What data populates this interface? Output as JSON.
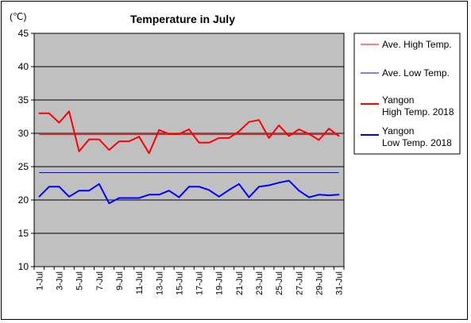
{
  "chart_data": {
    "type": "line",
    "title": "Temperature in July",
    "unit_label": "(℃)",
    "ylim": [
      10,
      45
    ],
    "y_ticks": [
      10,
      15,
      20,
      25,
      30,
      35,
      40,
      45
    ],
    "x": [
      1,
      2,
      3,
      4,
      5,
      6,
      7,
      8,
      9,
      10,
      11,
      12,
      13,
      14,
      15,
      16,
      17,
      18,
      19,
      20,
      21,
      22,
      23,
      24,
      25,
      26,
      27,
      28,
      29,
      30,
      31
    ],
    "x_tick_labels": [
      "1-Jul",
      "3-Jul",
      "5-Jul",
      "7-Jul",
      "9-Jul",
      "11-Jul",
      "13-Jul",
      "15-Jul",
      "17-Jul",
      "19-Jul",
      "21-Jul",
      "23-Jul",
      "25-Jul",
      "27-Jul",
      "29-Jul",
      "31-Jul"
    ],
    "plot_background": "#c0c0c0",
    "grid": true,
    "legend_position": "right",
    "series": [
      {
        "name": "Ave. High Temp.",
        "color": "#ff0000",
        "width": 1,
        "constant": 29.8
      },
      {
        "name": "Ave. Low Temp.",
        "color": "#0000ff",
        "width": 1,
        "constant": 24.1
      },
      {
        "name": "Yangon\nHigh Temp. 2018",
        "color": "#ff0000",
        "width": 2,
        "values": [
          33.0,
          33.0,
          31.6,
          33.3,
          27.3,
          29.1,
          29.1,
          27.5,
          28.8,
          28.8,
          29.5,
          27.0,
          30.5,
          29.9,
          29.9,
          30.6,
          28.6,
          28.6,
          29.3,
          29.3,
          30.3,
          31.7,
          32.0,
          29.3,
          31.2,
          29.6,
          30.6,
          29.9,
          29.0,
          30.7,
          29.6
        ]
      },
      {
        "name": "Yangon\nLow Temp. 2018",
        "color": "#0000ff",
        "width": 2,
        "values": [
          20.5,
          22.0,
          22.0,
          20.5,
          21.4,
          21.4,
          22.4,
          19.5,
          20.3,
          20.3,
          20.3,
          20.8,
          20.8,
          21.4,
          20.4,
          22.0,
          22.0,
          21.5,
          20.5,
          21.5,
          22.4,
          20.4,
          22.0,
          22.2,
          22.6,
          22.9,
          21.4,
          20.4,
          20.8,
          20.7,
          20.8
        ]
      }
    ]
  }
}
